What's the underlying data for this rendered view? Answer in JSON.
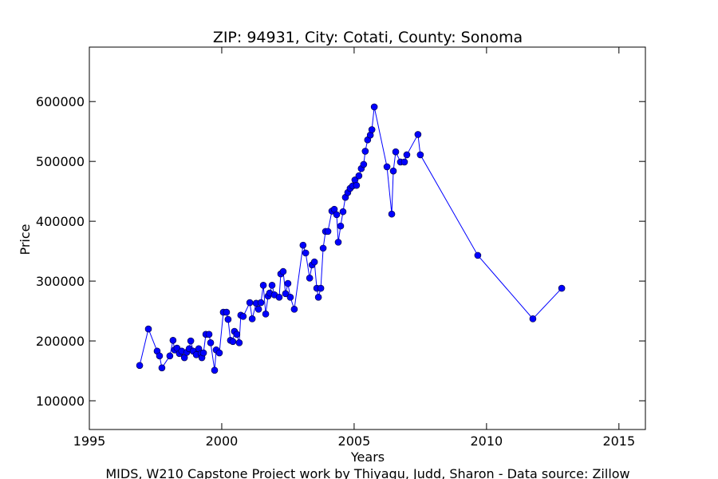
{
  "chart_data": {
    "type": "line",
    "title": "ZIP: 94931, City: Cotati, County: Sonoma",
    "xlabel": "Years",
    "ylabel": "Price",
    "caption": "MIDS, W210 Capstone Project work by Thiyagu, Judd, Sharon  -  Data source: Zillow",
    "x": [
      1996.9,
      1997.23,
      1997.56,
      1997.65,
      1997.74,
      1998.04,
      1998.16,
      1998.22,
      1998.31,
      1998.4,
      1998.49,
      1998.59,
      1998.68,
      1998.77,
      1998.83,
      1998.92,
      1999.04,
      1999.13,
      1999.22,
      1999.25,
      1999.31,
      1999.4,
      1999.52,
      1999.58,
      1999.73,
      1999.79,
      1999.91,
      2000.06,
      2000.18,
      2000.24,
      2000.33,
      2000.42,
      2000.48,
      2000.57,
      2000.66,
      2000.72,
      2000.81,
      2001.06,
      2001.15,
      2001.3,
      2001.39,
      2001.48,
      2001.57,
      2001.66,
      2001.75,
      2001.81,
      2001.9,
      2001.99,
      2002.17,
      2002.23,
      2002.32,
      2002.41,
      2002.5,
      2002.59,
      2002.74,
      2003.07,
      2003.17,
      2003.32,
      2003.41,
      2003.5,
      2003.59,
      2003.65,
      2003.74,
      2003.83,
      2003.92,
      2004.01,
      2004.16,
      2004.25,
      2004.34,
      2004.4,
      2004.49,
      2004.58,
      2004.67,
      2004.76,
      2004.85,
      2004.94,
      2005.03,
      2005.09,
      2005.18,
      2005.27,
      2005.36,
      2005.42,
      2005.51,
      2005.61,
      2005.67,
      2005.76,
      2006.24,
      2006.42,
      2006.48,
      2006.57,
      2006.75,
      2006.9,
      2006.99,
      2007.41,
      2007.5,
      2009.67,
      2011.75,
      2012.84
    ],
    "series": [
      {
        "color": "#0000ff",
        "values": [
          159000,
          220000,
          183000,
          175000,
          155000,
          175000,
          201000,
          185000,
          188000,
          179000,
          183000,
          172000,
          181000,
          187000,
          200000,
          183000,
          177000,
          187000,
          179000,
          172000,
          180000,
          211000,
          211000,
          197000,
          151000,
          185000,
          180000,
          248000,
          248000,
          236000,
          201000,
          199000,
          216000,
          211000,
          197000,
          243000,
          241000,
          264000,
          237000,
          263000,
          253000,
          264000,
          293000,
          245000,
          275000,
          280000,
          293000,
          277000,
          273000,
          312000,
          316000,
          279000,
          296000,
          273000,
          253000,
          360000,
          347000,
          305000,
          327000,
          332000,
          288000,
          273000,
          288000,
          355000,
          383000,
          383000,
          417000,
          420000,
          411000,
          365000,
          392000,
          416000,
          440000,
          448000,
          455000,
          459000,
          469000,
          460000,
          476000,
          488000,
          495000,
          517000,
          536000,
          544000,
          553000,
          591000,
          491000,
          412000,
          484000,
          516000,
          499000,
          499000,
          511000,
          545000,
          511000,
          343000,
          237000,
          288000
        ]
      }
    ],
    "xlim": [
      1995,
      2016
    ],
    "xticks": [
      1995,
      2000,
      2005,
      2010,
      2015
    ],
    "ylim": [
      52000,
      691000
    ],
    "yticks": [
      100000,
      200000,
      300000,
      400000,
      500000,
      600000
    ],
    "grid": false
  }
}
